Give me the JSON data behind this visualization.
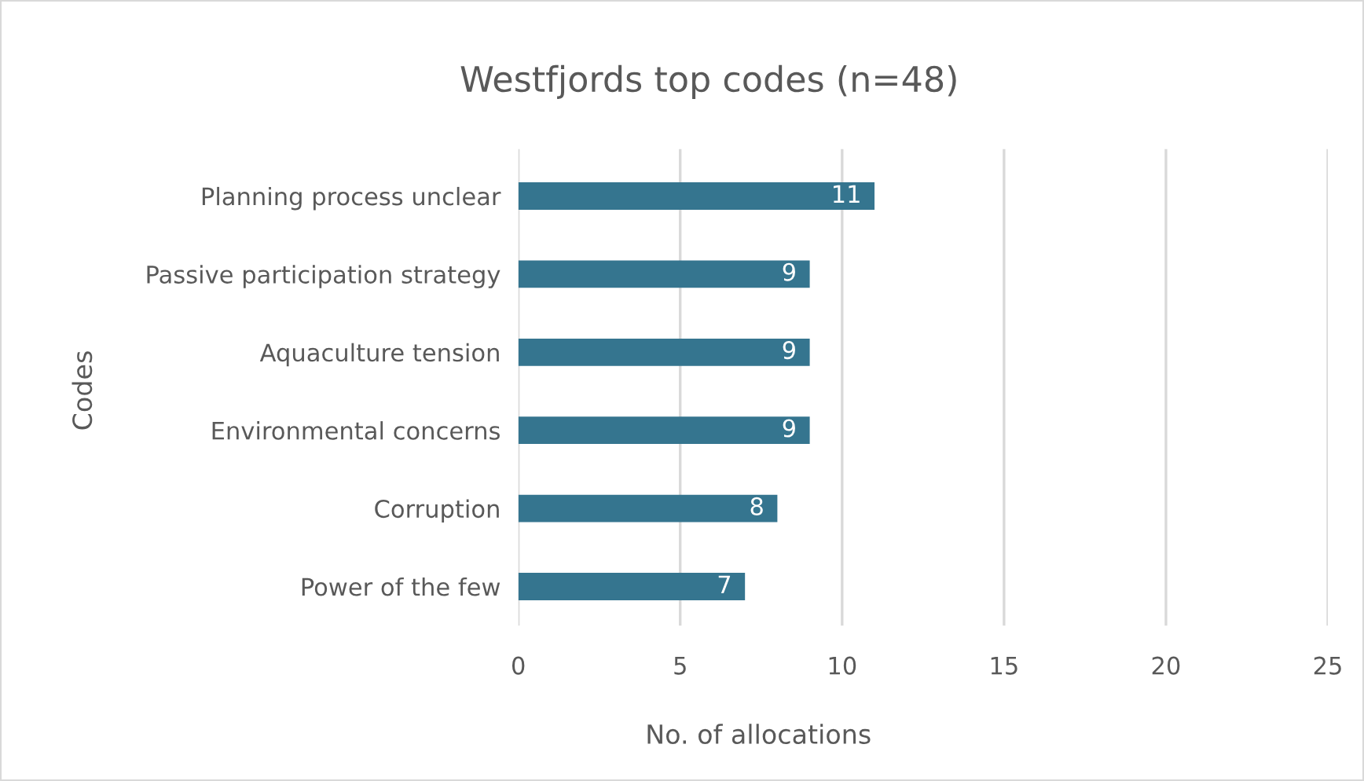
{
  "chart_data": {
    "type": "bar",
    "orientation": "horizontal",
    "title": "Westfjords top codes (n=48)",
    "xlabel": "No. of allocations",
    "ylabel": "Codes",
    "categories": [
      "Planning process unclear",
      "Passive participation strategy",
      "Aquaculture tension",
      "Environmental concerns",
      "Corruption",
      "Power of the few"
    ],
    "values": [
      11,
      9,
      9,
      9,
      8,
      7
    ],
    "color": "#35758f",
    "xlim": [
      0,
      25
    ],
    "xticks": [
      0,
      5,
      10,
      15,
      20,
      25
    ],
    "grid": "x",
    "data_labels": true,
    "legend": false
  }
}
